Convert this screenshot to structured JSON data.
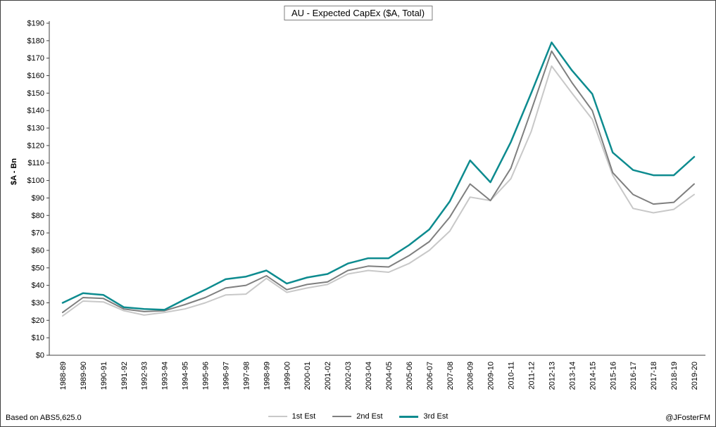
{
  "footer": {
    "left": "Based on ABS5,625.0",
    "right": "@JFosterFM"
  },
  "chart_data": {
    "type": "line",
    "title": "AU - Expected CapEx ($A, Total)",
    "xlabel": "",
    "ylabel": "$A - Bn",
    "ylim": [
      0,
      190
    ],
    "ytick_step": 10,
    "ytick_prefix": "$",
    "grid": false,
    "legend_position": "bottom",
    "axis_color": "#404040",
    "categories": [
      "1988-89",
      "1989-90",
      "1990-91",
      "1991-92",
      "1992-93",
      "1993-94",
      "1994-95",
      "1995-96",
      "1996-97",
      "1997-98",
      "1998-99",
      "1999-00",
      "2000-01",
      "2001-02",
      "2002-03",
      "2003-04",
      "2004-05",
      "2005-06",
      "2006-07",
      "2007-08",
      "2008-09",
      "2009-10",
      "2010-11",
      "2011-12",
      "2012-13",
      "2013-14",
      "2014-15",
      "2015-16",
      "2016-17",
      "2017-18",
      "2018-19",
      "2019-20"
    ],
    "series": [
      {
        "name": "1st Est",
        "color": "#c8c8c8",
        "width": 2,
        "values": [
          22.5,
          31,
          30.5,
          25.5,
          23,
          24.5,
          26.5,
          30,
          34.5,
          35,
          44,
          36,
          38.5,
          40.5,
          46.5,
          48.5,
          47.5,
          52.5,
          60,
          71,
          90.5,
          88.5,
          101,
          128,
          165.5,
          150,
          135,
          103,
          84,
          81.5,
          83.5,
          92
        ]
      },
      {
        "name": "2nd Est",
        "color": "#7f7f7f",
        "width": 2,
        "values": [
          24.5,
          33,
          32.5,
          26.5,
          25,
          25.5,
          29,
          33,
          38.5,
          40,
          45.5,
          37.5,
          40.5,
          42,
          48.5,
          51,
          50.5,
          57,
          65,
          79,
          98,
          88.5,
          107,
          140,
          174,
          156,
          140,
          104.5,
          92,
          86.5,
          87.5,
          98
        ]
      },
      {
        "name": "3rd Est",
        "color": "#0d8b8f",
        "width": 2.5,
        "values": [
          30,
          35.5,
          34.5,
          27.5,
          26.5,
          26,
          32,
          37.5,
          43.5,
          45,
          48.5,
          41,
          44.5,
          46.5,
          52.5,
          55.5,
          55.5,
          63,
          72,
          88,
          111.5,
          99,
          122,
          150,
          179,
          163,
          149.5,
          116,
          106,
          103,
          103,
          113.5
        ]
      }
    ]
  }
}
